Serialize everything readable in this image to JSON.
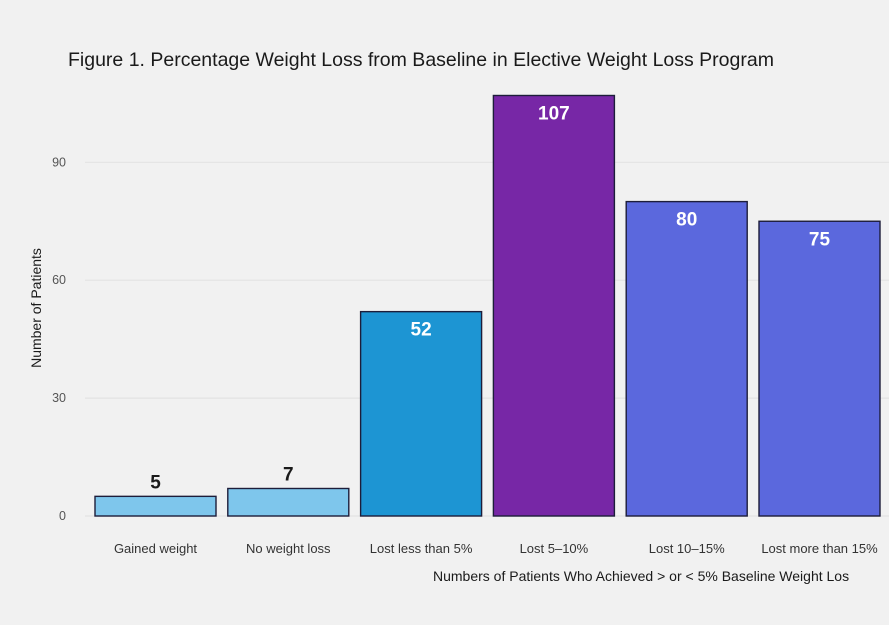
{
  "chart_data": {
    "type": "bar",
    "title": "Figure 1. Percentage Weight Loss from Baseline in Elective Weight Loss Program",
    "xlabel": "Numbers of Patients Who Achieved > or < 5% Baseline Weight Los",
    "ylabel": "Number of Patients",
    "categories": [
      "Gained weight",
      "No weight loss",
      "Lost less than 5%",
      "Lost 5–10%",
      "Lost 10–15%",
      "Lost more than 15%"
    ],
    "values": [
      5,
      7,
      52,
      107,
      80,
      75
    ],
    "data_labels": [
      "5",
      "7",
      "52",
      "107",
      "80",
      "75"
    ],
    "bar_colors": [
      "#7ec6ec",
      "#7ec6ec",
      "#1d95d3",
      "#7727a6",
      "#5b68dd",
      "#5b68dd"
    ],
    "yticks": [
      "0",
      "30",
      "60",
      "90"
    ],
    "ylim": [
      0,
      110
    ],
    "grid": true,
    "legend": "none"
  }
}
